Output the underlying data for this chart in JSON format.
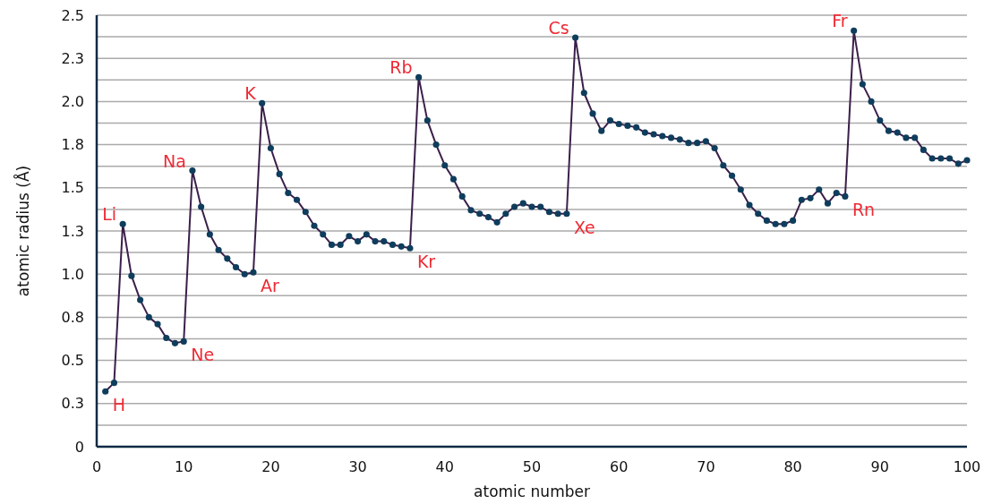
{
  "chart_data": {
    "type": "line",
    "xlabel": "atomic number",
    "ylabel": "atomic radius (Å)",
    "x": [
      1,
      2,
      3,
      4,
      5,
      6,
      7,
      8,
      9,
      10,
      11,
      12,
      13,
      14,
      15,
      16,
      17,
      18,
      19,
      20,
      21,
      22,
      23,
      24,
      25,
      26,
      27,
      28,
      29,
      30,
      31,
      32,
      33,
      34,
      35,
      36,
      37,
      38,
      39,
      40,
      41,
      42,
      43,
      44,
      45,
      46,
      47,
      48,
      49,
      50,
      51,
      52,
      53,
      54,
      55,
      56,
      57,
      58,
      59,
      60,
      61,
      62,
      63,
      64,
      65,
      66,
      67,
      68,
      69,
      70,
      71,
      72,
      73,
      74,
      75,
      76,
      77,
      78,
      79,
      80,
      81,
      82,
      83,
      84,
      85,
      86,
      87,
      88,
      89,
      90,
      91,
      92,
      93,
      94,
      95,
      96,
      97,
      98,
      99,
      100
    ],
    "series": [
      {
        "color": "#0f3d5c",
        "values": [
          0.32,
          0.37,
          1.29,
          0.99,
          0.85,
          0.75,
          0.71,
          0.63,
          0.6,
          0.61,
          1.6,
          1.39,
          1.23,
          1.14,
          1.09,
          1.04,
          1.0,
          1.01,
          1.99,
          1.73,
          1.58,
          1.47,
          1.43,
          1.36,
          1.28,
          1.23,
          1.17,
          1.17,
          1.22,
          1.19,
          1.23,
          1.19,
          1.19,
          1.17,
          1.16,
          1.15,
          2.14,
          1.89,
          1.75,
          1.63,
          1.55,
          1.45,
          1.37,
          1.35,
          1.33,
          1.3,
          1.35,
          1.39,
          1.41,
          1.39,
          1.39,
          1.36,
          1.35,
          1.35,
          2.37,
          2.05,
          1.93,
          1.83,
          1.89,
          1.87,
          1.86,
          1.85,
          1.82,
          1.81,
          1.8,
          1.79,
          1.78,
          1.76,
          1.76,
          1.77,
          1.73,
          1.63,
          1.57,
          1.49,
          1.4,
          1.35,
          1.31,
          1.29,
          1.29,
          1.31,
          1.43,
          1.44,
          1.49,
          1.41,
          1.47,
          1.45,
          2.41,
          2.1,
          2.0,
          1.89,
          1.83,
          1.82,
          1.79,
          1.79,
          1.72,
          1.67,
          1.67,
          1.67,
          1.64,
          1.66
        ]
      }
    ],
    "xlim": [
      0,
      100
    ],
    "xticks": [
      0,
      10,
      20,
      30,
      40,
      50,
      60,
      70,
      80,
      90,
      100
    ],
    "ylim": [
      0,
      2.5
    ],
    "yticks": [
      0,
      {
        "value": 0.125,
        "label": null
      },
      {
        "value": 0.25,
        "label": "0.3"
      },
      {
        "value": 0.375,
        "label": null
      },
      {
        "value": 0.5,
        "label": "0.5"
      },
      {
        "value": 0.625,
        "label": null
      },
      {
        "value": 0.75,
        "label": "0.8"
      },
      {
        "value": 0.875,
        "label": null
      },
      {
        "value": 1,
        "label": "1.0"
      },
      {
        "value": 1.125,
        "label": null
      },
      {
        "value": 1.25,
        "label": "1.3"
      },
      {
        "value": 1.375,
        "label": null
      },
      {
        "value": 1.5,
        "label": "1.5"
      },
      {
        "value": 1.625,
        "label": null
      },
      {
        "value": 1.75,
        "label": "1.8"
      },
      {
        "value": 1.875,
        "label": null
      },
      {
        "value": 2,
        "label": "2.0"
      },
      {
        "value": 2.125,
        "label": null
      },
      {
        "value": 2.25,
        "label": "2.3"
      },
      {
        "value": 2.375,
        "label": null
      },
      {
        "value": 2.5,
        "label": "2.5"
      }
    ],
    "grid": "y",
    "marker": "circle",
    "line_style": "solid",
    "annotations": [
      {
        "text": "H",
        "x": 1,
        "y": 0.32
      },
      {
        "text": "Li",
        "x": 3,
        "y": 1.29
      },
      {
        "text": "Ne",
        "x": 10,
        "y": 0.61
      },
      {
        "text": "Na",
        "x": 11,
        "y": 1.6
      },
      {
        "text": "Ar",
        "x": 18,
        "y": 1.01
      },
      {
        "text": "K",
        "x": 19,
        "y": 1.99
      },
      {
        "text": "Kr",
        "x": 36,
        "y": 1.15
      },
      {
        "text": "Rb",
        "x": 37,
        "y": 2.14
      },
      {
        "text": "Xe",
        "x": 54,
        "y": 1.35
      },
      {
        "text": "Cs",
        "x": 55,
        "y": 2.37
      },
      {
        "text": "Rn",
        "x": 86,
        "y": 1.45
      },
      {
        "text": "Fr",
        "x": 87,
        "y": 2.41
      }
    ]
  }
}
